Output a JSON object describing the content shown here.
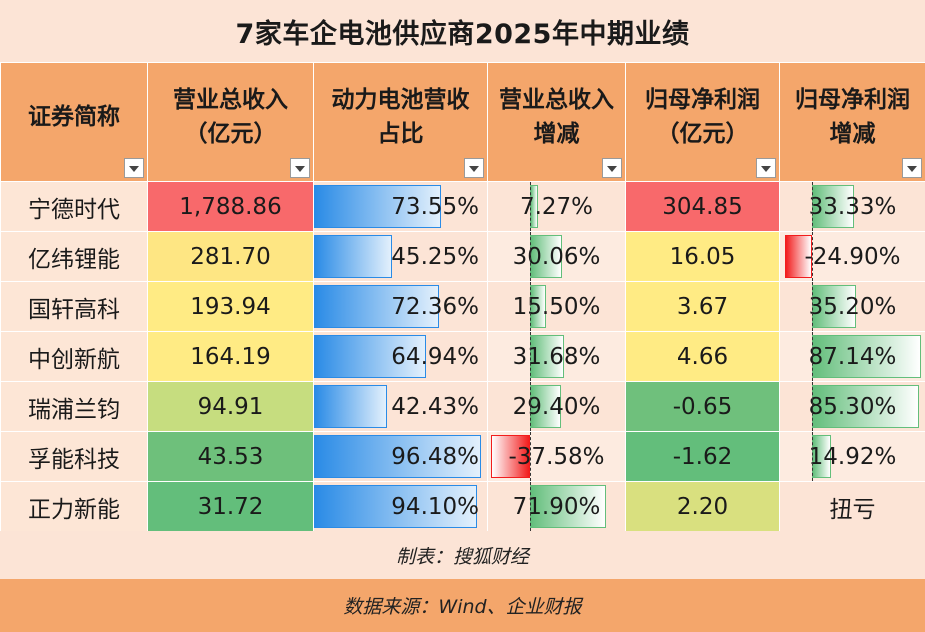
{
  "title": "7家车企电池供应商2025年中期业绩",
  "headers": [
    "证券简称",
    "营业总收入\n（亿元）",
    "动力电池营收\n占比",
    "营业总收入\n增减",
    "归母净利润\n（亿元）",
    "归母净利润\n增减"
  ],
  "rows": [
    {
      "name": "宁德时代",
      "revenue": "1,788.86",
      "battery_share": "73.55%",
      "rev_growth": "7.27%",
      "profit": "304.85",
      "profit_growth": "33.33%"
    },
    {
      "name": "亿纬锂能",
      "revenue": "281.70",
      "battery_share": "45.25%",
      "rev_growth": "30.06%",
      "profit": "16.05",
      "profit_growth": "-24.90%"
    },
    {
      "name": "国轩高科",
      "revenue": "193.94",
      "battery_share": "72.36%",
      "rev_growth": "15.50%",
      "profit": "3.67",
      "profit_growth": "35.20%"
    },
    {
      "name": "中创新航",
      "revenue": "164.19",
      "battery_share": "64.94%",
      "rev_growth": "31.68%",
      "profit": "4.66",
      "profit_growth": "87.14%"
    },
    {
      "name": "瑞浦兰钧",
      "revenue": "94.91",
      "battery_share": "42.43%",
      "rev_growth": "29.40%",
      "profit": "-0.65",
      "profit_growth": "85.30%"
    },
    {
      "name": "孚能科技",
      "revenue": "43.53",
      "battery_share": "96.48%",
      "rev_growth": "-37.58%",
      "profit": "-1.62",
      "profit_growth": "14.92%"
    },
    {
      "name": "正力新能",
      "revenue": "31.72",
      "battery_share": "94.10%",
      "rev_growth": "71.90%",
      "profit": "2.20",
      "profit_growth": "扭亏"
    }
  ],
  "revenue_colors": [
    "#f8696b",
    "#fee683",
    "#ffeb84",
    "#ffeb84",
    "#c6dd7f",
    "#6ec07b",
    "#63be7b"
  ],
  "profit_colors": [
    "#f8696b",
    "#ffeb84",
    "#ffeb84",
    "#ffeb84",
    "#6fc07c",
    "#63be7b",
    "#d9e07f"
  ],
  "databar_colors": {
    "blue": "#2a8be6",
    "green": "#63be7b",
    "red": "#f21d1d"
  },
  "footer": {
    "made_by": "制表：搜狐财经",
    "source": "数据来源：Wind、企业财报"
  }
}
